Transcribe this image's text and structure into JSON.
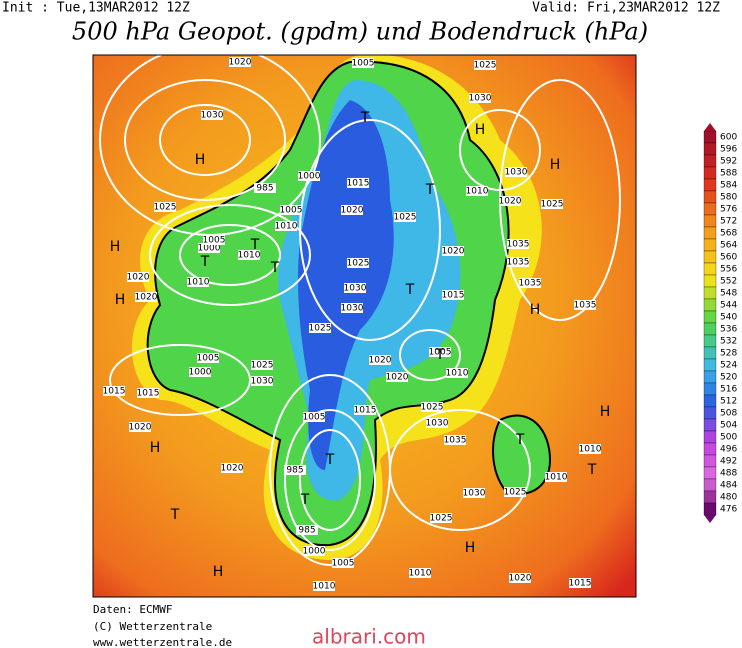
{
  "header": {
    "init": "Init : Tue,13MAR2012 12Z",
    "valid": "Valid: Fri,23MAR2012 12Z",
    "title": "500 hPa Geopot. (gpdm) und Bodendruck (hPa)"
  },
  "legend": {
    "values": [
      600,
      596,
      592,
      588,
      584,
      580,
      576,
      572,
      568,
      564,
      560,
      556,
      552,
      548,
      544,
      540,
      536,
      532,
      528,
      524,
      520,
      516,
      512,
      508,
      504,
      500,
      496,
      492,
      488,
      484,
      480,
      476
    ]
  },
  "map": {
    "isobar_labels": [
      "1020",
      "1030",
      "1025",
      "1005",
      "1025",
      "1030",
      "1015",
      "1020",
      "1025",
      "1020",
      "1025",
      "1030",
      "1030",
      "1015",
      "1025",
      "1020",
      "1005",
      "1010",
      "1020",
      "1025",
      "1030",
      "1035",
      "1015",
      "1005",
      "985",
      "985",
      "1000",
      "1005",
      "1010",
      "1010",
      "1020",
      "1015",
      "1025",
      "1030",
      "1025",
      "1010",
      "1010",
      "1020",
      "1020",
      "1015",
      "1015",
      "1005",
      "1000",
      "1025",
      "1030",
      "1010",
      "1020",
      "1020",
      "1000",
      "1005",
      "1010",
      "1010",
      "1005",
      "1000",
      "985",
      "1035",
      "1035",
      "1035",
      "1035",
      "1025",
      "1020",
      "1010",
      "1030"
    ],
    "centers": [
      "H",
      "H",
      "H",
      "H",
      "T",
      "T",
      "T",
      "T",
      "H",
      "H",
      "T",
      "T",
      "T",
      "T",
      "H",
      "H",
      "T",
      "T",
      "H",
      "T",
      "H",
      "T"
    ]
  },
  "footer": [
    "Daten: ECMWF",
    "(C) Wetterzentrale",
    "www.wetterzentrale.de"
  ],
  "watermark": "albrari.com"
}
